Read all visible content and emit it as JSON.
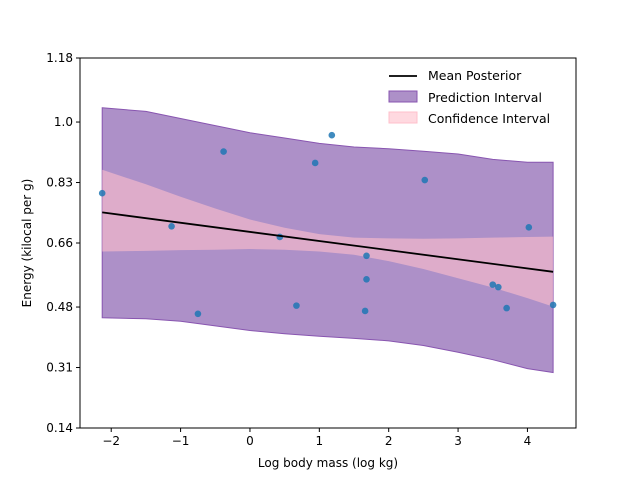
{
  "chart_data": {
    "type": "scatter",
    "title": "",
    "xlabel": "Log body mass (log kg)",
    "ylabel": "Energy (kilocal per g)",
    "xlim": [
      -2.45,
      4.7
    ],
    "ylim": [
      0.14,
      1.18
    ],
    "xticks": [
      -2,
      -1,
      0,
      1,
      2,
      3,
      4
    ],
    "yticks": [
      0.14,
      0.31,
      0.48,
      0.66,
      0.83,
      1.0,
      1.18
    ],
    "ytick_labels": [
      "0.14",
      "0.31",
      "0.48",
      "0.66",
      "0.83",
      "1.0",
      "1.18"
    ],
    "legend": {
      "placement": "top-right",
      "entries": [
        "Mean Posterior",
        "Prediction Interval",
        "Confidence Interval"
      ]
    },
    "colors": {
      "points": "#1f77b4",
      "mean_line": "#000000",
      "prediction_fill": "#8d65b3",
      "prediction_edge": "#8855b0",
      "confidence_fill": "#ffc0cb"
    },
    "points": [
      {
        "x": -2.13,
        "y": 0.8
      },
      {
        "x": -1.13,
        "y": 0.707
      },
      {
        "x": -0.75,
        "y": 0.461
      },
      {
        "x": -0.38,
        "y": 0.917
      },
      {
        "x": 0.43,
        "y": 0.677
      },
      {
        "x": 0.67,
        "y": 0.484
      },
      {
        "x": 0.94,
        "y": 0.885
      },
      {
        "x": 1.18,
        "y": 0.963
      },
      {
        "x": 1.66,
        "y": 0.469
      },
      {
        "x": 1.68,
        "y": 0.624
      },
      {
        "x": 1.68,
        "y": 0.558
      },
      {
        "x": 2.52,
        "y": 0.837
      },
      {
        "x": 3.5,
        "y": 0.543
      },
      {
        "x": 3.58,
        "y": 0.536
      },
      {
        "x": 3.7,
        "y": 0.477
      },
      {
        "x": 4.02,
        "y": 0.704
      },
      {
        "x": 4.37,
        "y": 0.486
      }
    ],
    "mean_posterior": {
      "x": [
        -2.13,
        4.37
      ],
      "y": [
        0.746,
        0.579
      ]
    },
    "prediction_interval": {
      "x": [
        -2.13,
        -1.5,
        -1.0,
        -0.5,
        0.0,
        0.5,
        1.0,
        1.5,
        2.0,
        2.5,
        3.0,
        3.5,
        4.0,
        4.37
      ],
      "upper": [
        1.04,
        1.03,
        1.01,
        0.99,
        0.97,
        0.955,
        0.94,
        0.93,
        0.925,
        0.918,
        0.91,
        0.895,
        0.887,
        0.887
      ],
      "lower": [
        0.45,
        0.447,
        0.44,
        0.427,
        0.414,
        0.405,
        0.398,
        0.392,
        0.385,
        0.372,
        0.353,
        0.332,
        0.307,
        0.296
      ]
    },
    "confidence_interval": {
      "x": [
        -2.13,
        -1.5,
        -1.0,
        -0.5,
        0.0,
        0.5,
        1.0,
        1.5,
        2.0,
        2.5,
        3.0,
        3.5,
        4.0,
        4.37
      ],
      "upper": [
        0.866,
        0.825,
        0.79,
        0.757,
        0.726,
        0.703,
        0.685,
        0.675,
        0.673,
        0.672,
        0.673,
        0.675,
        0.677,
        0.678
      ],
      "lower": [
        0.636,
        0.638,
        0.64,
        0.641,
        0.643,
        0.641,
        0.636,
        0.627,
        0.609,
        0.587,
        0.561,
        0.535,
        0.505,
        0.481
      ]
    }
  }
}
